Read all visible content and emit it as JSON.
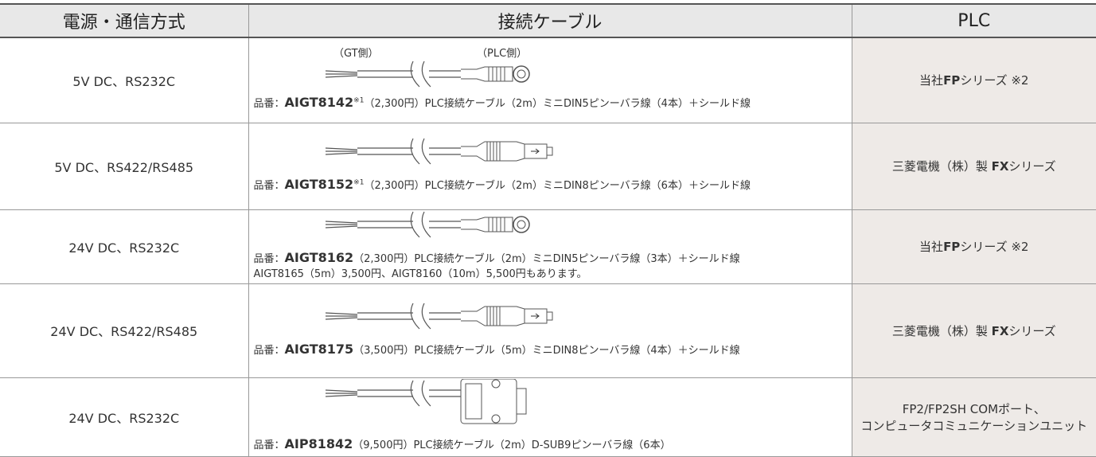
{
  "table": {
    "header": [
      "電源・通信方式",
      "接続ケーブル",
      "PLC"
    ],
    "cable_labels": [
      "（GT側）",
      "（PLC側）"
    ],
    "rows": [
      {
        "power": "5V DC、RS232C",
        "part_prefix": "品番：",
        "part_number": "AIGT8142",
        "note": "※1",
        "description": "（2,300円）PLC接続ケーブル（2m）ミニDIN5ピンーバラ線（4本）＋シールド線",
        "plc": [
          "当社",
          "FP",
          "シリーズ ※2"
        ]
      },
      {
        "power": "5V DC、RS422/RS485",
        "part_prefix": "品番：",
        "part_number": "AIGT8152",
        "note": "※1",
        "description": "（2,300円）PLC接続ケーブル（2m）ミニDIN8ピンーバラ線（6本）＋シールド線",
        "plc": [
          "三菱電機（株）製 ",
          "FX",
          "シリーズ"
        ]
      },
      {
        "power": "24V DC、RS232C",
        "part_prefix": "品番：",
        "part_number": "AIGT8162",
        "description": "（2,300円）PLC接続ケーブル（2m）ミニDIN5ピンーバラ線（3本）＋シールド線",
        "extra": "AIGT8165（5m）3,500円、AIGT8160（10m）5,500円もあります。",
        "plc": [
          "当社",
          "FP",
          "シリーズ ※2"
        ]
      },
      {
        "power": "24V DC、RS422/RS485",
        "part_prefix": "品番：",
        "part_number": "AIGT8175",
        "description": "（3,500円）PLC接続ケーブル（5m）ミニDIN8ピンーバラ線（4本）＋シールド線",
        "plc": [
          "三菱電機（株）製 ",
          "FX",
          "シリーズ"
        ]
      },
      {
        "power": "24V DC、RS232C",
        "part_prefix": "品番：",
        "part_number": "AIP81842",
        "description": "（9,500円）PLC接続ケーブル（2m）D-SUB9ピンーバラ線（6本）",
        "plc_lines": [
          "FP2/FP2SH COMポート、",
          "コンピュータコミュニケーションユニット"
        ]
      }
    ]
  }
}
